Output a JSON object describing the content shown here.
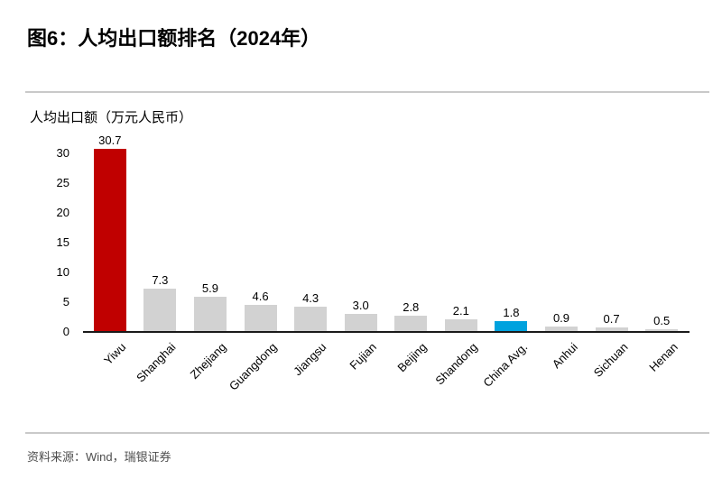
{
  "header": {
    "title": "图6：人均出口额排名（2024年）"
  },
  "chart_data": {
    "type": "bar",
    "title": "人均出口额（万元人民币）",
    "categories": [
      "Yiwu",
      "Shanghai",
      "Zhejiang",
      "Guangdong",
      "Jiangsu",
      "Fujian",
      "Beijing",
      "Shandong",
      "China Avg.",
      "Anhui",
      "Sichuan",
      "Henan"
    ],
    "values": [
      30.7,
      7.3,
      5.9,
      4.6,
      4.3,
      3.0,
      2.8,
      2.1,
      1.8,
      0.9,
      0.7,
      0.5
    ],
    "value_labels": [
      "30.7",
      "7.3",
      "5.9",
      "4.6",
      "4.3",
      "3.0",
      "2.8",
      "2.1",
      "1.8",
      "0.9",
      "0.7",
      "0.5"
    ],
    "bar_colors": [
      "#c00000",
      "#d2d2d2",
      "#d2d2d2",
      "#d2d2d2",
      "#d2d2d2",
      "#d2d2d2",
      "#d2d2d2",
      "#d2d2d2",
      "#00a2de",
      "#d2d2d2",
      "#d2d2d2",
      "#d2d2d2"
    ],
    "highlight_colors": {
      "yiwu_bar": "#c00000",
      "china_avg_bar": "#00a2de",
      "default_bar": "#d2d2d2"
    },
    "xlabel": "",
    "ylabel": "人均出口额（万元人民币）",
    "y_ticks": [
      0,
      5,
      10,
      15,
      20,
      25,
      30
    ],
    "ylim": [
      0,
      32
    ],
    "grid": false,
    "legend": "none",
    "value_labels_shown": true,
    "x_label_rotation_deg": -45
  },
  "footer": {
    "source": "资料来源：Wind，瑞银证券"
  }
}
